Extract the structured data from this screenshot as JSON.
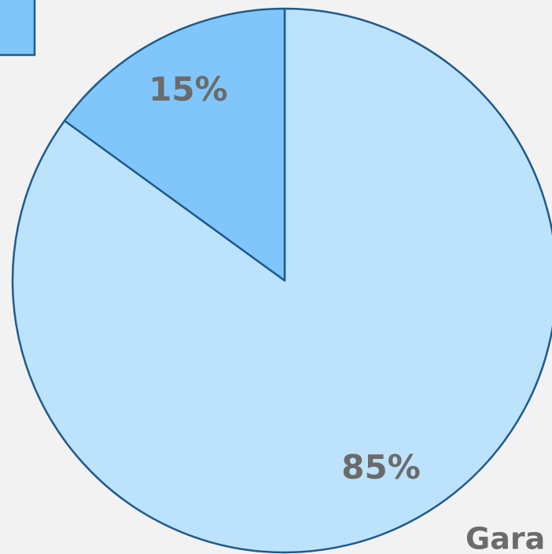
{
  "chart_data": {
    "type": "pie",
    "values": [
      85,
      15
    ],
    "value_labels": [
      "85%",
      "15%"
    ],
    "colors": [
      "#bde2fc",
      "#80c6fb"
    ],
    "annotation": "Gara"
  }
}
